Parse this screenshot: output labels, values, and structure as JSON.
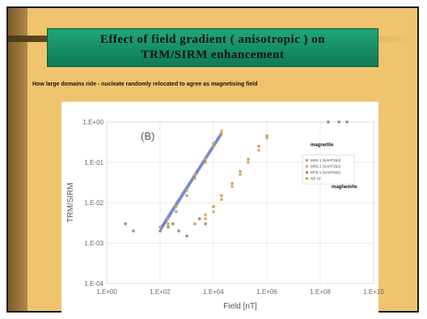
{
  "slide": {
    "title_line1": "Effect of field gradient ( anisotropic ) on",
    "title_line2": "TRM/SIRM enhancement",
    "caption": "How large domains ride - nucleate randomly relocated to agree as magnetising field"
  },
  "chart_data": {
    "type": "scatter",
    "panel_label": "(B)",
    "xlabel": "Field [nT]",
    "ylabel": "TRM/SIRM",
    "xscale": "log",
    "yscale": "log",
    "xlim": [
      1,
      10000000000
    ],
    "ylim": [
      0.0001,
      1
    ],
    "x_ticks": [
      "1.E+00",
      "1.E+02",
      "1.E+04",
      "1.E+06",
      "1.E+08",
      "1.E+10"
    ],
    "y_ticks": [
      "1.E+00",
      "1.E-01",
      "1.E-02",
      "1.E-03",
      "1.E-04"
    ],
    "grid": true,
    "legend": [
      "MSS 1 (SAHT262)",
      "MSS 2 (SAHT262)",
      "MTS 1 (SAHT262)",
      "SD 10"
    ],
    "annotations": [
      "magnetite",
      "maghemite"
    ],
    "colors": {
      "fit_lines": "#6f7fd0",
      "points_a": "#c9a24a",
      "points_b": "#d4a55a",
      "points_c": "#9a8a6a"
    },
    "series": [
      {
        "x": [
          100,
          200,
          400,
          1000,
          2000,
          5000,
          10000,
          20000
        ],
        "y": [
          0.002,
          0.003,
          0.006,
          0.015,
          0.04,
          0.1,
          0.25,
          0.5
        ]
      },
      {
        "x": [
          100,
          200,
          400,
          1000,
          2000,
          5000,
          10000,
          20000
        ],
        "y": [
          0.0025,
          0.004,
          0.008,
          0.02,
          0.05,
          0.12,
          0.3,
          0.6
        ]
      },
      {
        "x": [
          5,
          10,
          100,
          200,
          300,
          500,
          1000,
          2000,
          3000,
          5000,
          10000
        ],
        "y": [
          0.003,
          0.002,
          0.002,
          0.0025,
          0.003,
          0.002,
          0.0015,
          0.003,
          0.004,
          0.003,
          0.008
        ]
      },
      {
        "x": [
          2000,
          5000,
          10000,
          20000,
          50000,
          100000,
          200000,
          500000,
          1000000
        ],
        "y": [
          0.003,
          0.005,
          0.008,
          0.015,
          0.03,
          0.06,
          0.12,
          0.25,
          0.45
        ]
      },
      {
        "x": [
          5000,
          10000,
          20000,
          50000,
          100000,
          200000,
          500000,
          1000000
        ],
        "y": [
          0.004,
          0.006,
          0.012,
          0.025,
          0.05,
          0.1,
          0.2,
          0.4
        ]
      },
      {
        "x": [
          200000000,
          500000000,
          1000000000
        ],
        "y": [
          1,
          1,
          1
        ]
      }
    ]
  }
}
